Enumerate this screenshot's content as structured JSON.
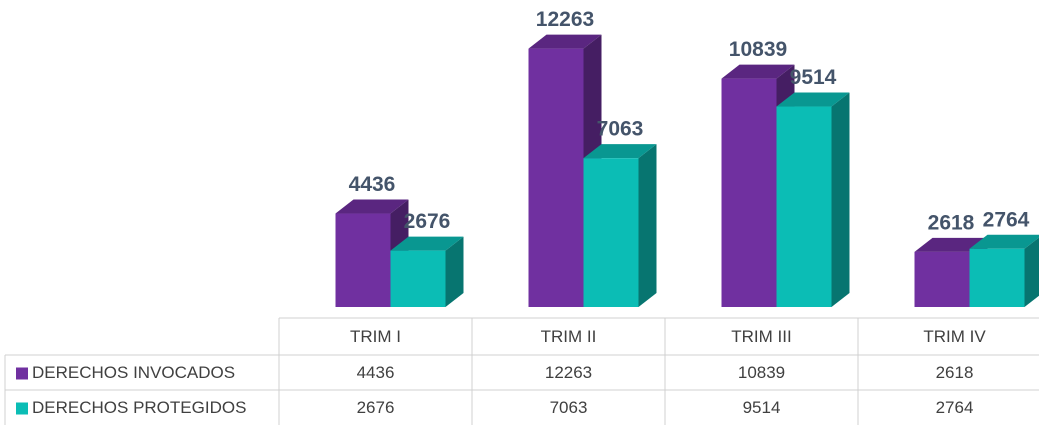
{
  "chart_data": {
    "type": "bar",
    "categories": [
      "TRIM I",
      "TRIM II",
      "TRIM III",
      "TRIM IV"
    ],
    "series": [
      {
        "name": "DERECHOS INVOCADOS",
        "color": "#7030a0",
        "values": [
          4436,
          12263,
          10839,
          2618
        ]
      },
      {
        "name": "DERECHOS PROTEGIDOS",
        "color": "#0bbdb5",
        "values": [
          2676,
          7063,
          9514,
          2764
        ]
      }
    ],
    "ylim": [
      0,
      14000
    ]
  }
}
